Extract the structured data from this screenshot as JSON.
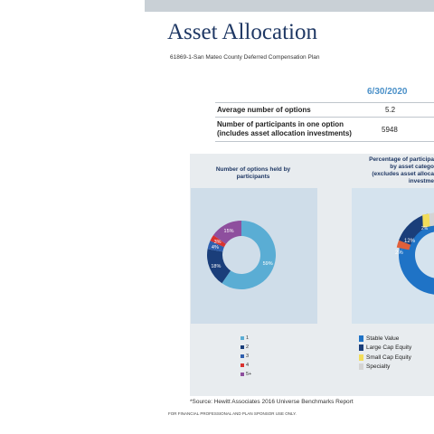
{
  "header": {
    "title": "Asset Allocation",
    "plan_name": "61869-1-San Mateo County Deferred Compensation Plan"
  },
  "stats": {
    "date": "6/30/2020",
    "rows": [
      {
        "label_line1": "Average number of options",
        "label_line2": "",
        "value": "5.2"
      },
      {
        "label_line1": "Number of participants in one option",
        "label_line2": "(includes asset allocation investments)",
        "value": "5948"
      }
    ]
  },
  "chart_data": [
    {
      "type": "pie",
      "title_line1": "Number of options held by",
      "title_line2": "participants",
      "categories": [
        "1",
        "2",
        "3",
        "4",
        "5+"
      ],
      "values": [
        59,
        18,
        4,
        3,
        15
      ],
      "labels": [
        "59%",
        "18%",
        "4%",
        "3%",
        "15%"
      ],
      "colors": [
        "#5aadd4",
        "#1a3e7a",
        "#2f5fae",
        "#d9322f",
        "#8e4f9e"
      ]
    },
    {
      "type": "pie",
      "title_line1": "Percentage of participa",
      "title_line2": "by asset catego",
      "title_line3": "(excludes asset alloca",
      "title_line4": "investme",
      "categories": [
        "Stable Value",
        "Large Cap Equity",
        "Small Cap Equity",
        "Specialty"
      ],
      "visible_labels": [
        "12%",
        "2%",
        "2%"
      ],
      "colors": [
        "#1f73c6",
        "#1a3e7a",
        "#f2dd5a",
        "#d4d4d4"
      ],
      "other_color": "#e1603b"
    }
  ],
  "footer": {
    "source": "*Source: Hewitt Associates 2016 Universe Benchmarks Report",
    "disclaimer": "FOR FINANCIAL PROFESSIONAL AND PLAN SPONSOR USE ONLY."
  }
}
